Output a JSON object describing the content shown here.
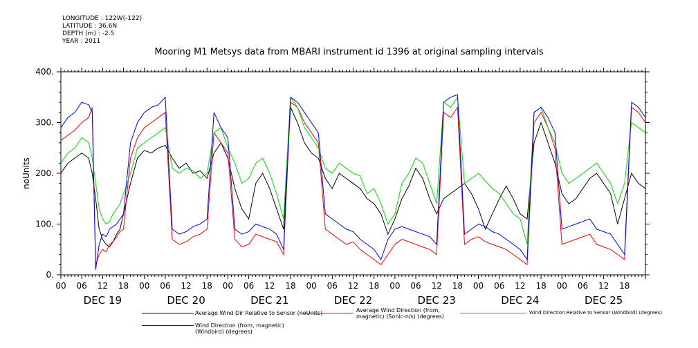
{
  "meta": {
    "longitude": "LONGITUDE : 122W(-122)",
    "latitude": "LATITUDE : 36.6N",
    "depth": "DEPTH (m) : -2.5",
    "year": "YEAR : 2011"
  },
  "chart_data": {
    "type": "line",
    "title": "Mooring M1 Metsys data from MBARI instrument id 1396 at original sampling intervals",
    "ylabel": "noUnits",
    "ylim": [
      0,
      400
    ],
    "yticks": [
      0,
      100,
      200,
      300,
      400
    ],
    "ytick_labels": [
      "0.",
      "100.",
      "200.",
      "300.",
      "400."
    ],
    "x_range_hours": [
      0,
      168
    ],
    "hour_tick_labels": [
      "00",
      "06",
      "12",
      "18",
      "00",
      "06",
      "12",
      "18",
      "00",
      "06",
      "12",
      "18",
      "00",
      "06",
      "12",
      "18",
      "00",
      "06",
      "12",
      "18",
      "00",
      "06",
      "12",
      "18",
      "00",
      "06",
      "12",
      "18"
    ],
    "day_labels": [
      "DEC 19",
      "DEC 20",
      "DEC 21",
      "DEC 22",
      "DEC 23",
      "DEC 24",
      "DEC 25"
    ],
    "grid": false,
    "legend_position": "bottom",
    "series": [
      {
        "name": "Average Wind Dir Relative to Sensor (noUnits)",
        "color": "#000000",
        "x": [
          0,
          2,
          4,
          6,
          8,
          9,
          10,
          11,
          12,
          13,
          14,
          15,
          16,
          17,
          18,
          20,
          22,
          24,
          26,
          28,
          30,
          32,
          34,
          36,
          38,
          40,
          42,
          44,
          46,
          48,
          50,
          52,
          54,
          56,
          58,
          60,
          62,
          64,
          66,
          68,
          70,
          72,
          74,
          76,
          78,
          80,
          82,
          84,
          86,
          88,
          90,
          92,
          94,
          96,
          98,
          100,
          102,
          104,
          106,
          108,
          110,
          112,
          114,
          116,
          118,
          120,
          122,
          124,
          126,
          128,
          130,
          132,
          134,
          136,
          138,
          140,
          142,
          144,
          146,
          148,
          150,
          152,
          154,
          156,
          158,
          160,
          162,
          164,
          166,
          168
        ],
        "y": [
          200,
          220,
          230,
          240,
          230,
          200,
          150,
          90,
          70,
          60,
          55,
          65,
          80,
          90,
          120,
          180,
          230,
          245,
          240,
          250,
          255,
          230,
          210,
          220,
          200,
          205,
          190,
          240,
          260,
          230,
          170,
          130,
          110,
          180,
          200,
          170,
          130,
          90,
          330,
          300,
          260,
          240,
          230,
          190,
          170,
          200,
          190,
          180,
          170,
          150,
          140,
          120,
          80,
          110,
          150,
          175,
          210,
          190,
          150,
          120,
          150,
          160,
          170,
          180,
          160,
          130,
          90,
          120,
          150,
          175,
          150,
          120,
          110,
          260,
          300,
          260,
          220,
          160,
          140,
          150,
          170,
          190,
          200,
          180,
          160,
          100,
          150,
          200,
          180,
          170
        ]
      },
      {
        "name": "Average Wind Direction (from, magnetic) (Sonic-n/s) (degrees)",
        "color": "#ff0000",
        "x": [
          0,
          2,
          4,
          6,
          8,
          9,
          10,
          11,
          12,
          13,
          14,
          15,
          16,
          17,
          18,
          20,
          22,
          24,
          26,
          28,
          30,
          32,
          34,
          36,
          38,
          40,
          42,
          44,
          46,
          48,
          50,
          52,
          54,
          56,
          58,
          60,
          62,
          64,
          66,
          68,
          70,
          72,
          74,
          76,
          78,
          80,
          82,
          84,
          86,
          88,
          90,
          92,
          94,
          96,
          98,
          100,
          102,
          104,
          106,
          108,
          110,
          112,
          114,
          116,
          118,
          120,
          122,
          124,
          126,
          128,
          130,
          132,
          134,
          136,
          138,
          140,
          142,
          144,
          146,
          148,
          150,
          152,
          154,
          156,
          158,
          160,
          162,
          164,
          166,
          168
        ],
        "y": [
          265,
          275,
          285,
          300,
          310,
          330,
          20,
          40,
          50,
          45,
          60,
          65,
          75,
          85,
          90,
          230,
          270,
          290,
          300,
          310,
          320,
          70,
          60,
          65,
          75,
          80,
          90,
          280,
          260,
          240,
          70,
          55,
          60,
          80,
          75,
          70,
          65,
          40,
          340,
          330,
          300,
          280,
          260,
          90,
          80,
          70,
          60,
          65,
          50,
          40,
          30,
          20,
          40,
          60,
          70,
          65,
          60,
          55,
          50,
          40,
          320,
          310,
          330,
          60,
          70,
          75,
          65,
          60,
          55,
          50,
          40,
          30,
          20,
          300,
          320,
          290,
          250,
          60,
          65,
          70,
          75,
          80,
          60,
          55,
          50,
          40,
          30,
          330,
          320,
          300
        ]
      },
      {
        "name": "Wind Direction Relative to Sensor (Windbird) (degrees)",
        "color": "#00dd00",
        "x": [
          0,
          2,
          4,
          6,
          8,
          9,
          10,
          11,
          12,
          13,
          14,
          15,
          16,
          17,
          18,
          20,
          22,
          24,
          26,
          28,
          30,
          32,
          34,
          36,
          38,
          40,
          42,
          44,
          46,
          48,
          50,
          52,
          54,
          56,
          58,
          60,
          62,
          64,
          66,
          68,
          70,
          72,
          74,
          76,
          78,
          80,
          82,
          84,
          86,
          88,
          90,
          92,
          94,
          96,
          98,
          100,
          102,
          104,
          106,
          108,
          110,
          112,
          114,
          116,
          118,
          120,
          122,
          124,
          126,
          128,
          130,
          132,
          134,
          136,
          138,
          140,
          142,
          144,
          146,
          148,
          150,
          152,
          154,
          156,
          158,
          160,
          162,
          164,
          166,
          168
        ],
        "y": [
          220,
          240,
          250,
          270,
          260,
          230,
          180,
          130,
          110,
          100,
          105,
          120,
          130,
          140,
          160,
          200,
          250,
          260,
          270,
          280,
          290,
          210,
          200,
          210,
          205,
          190,
          200,
          280,
          290,
          250,
          220,
          180,
          190,
          220,
          230,
          200,
          160,
          110,
          350,
          330,
          290,
          270,
          250,
          210,
          200,
          220,
          210,
          200,
          195,
          160,
          170,
          140,
          100,
          120,
          180,
          200,
          230,
          220,
          180,
          140,
          340,
          330,
          350,
          180,
          190,
          200,
          185,
          170,
          160,
          140,
          120,
          110,
          60,
          320,
          330,
          290,
          260,
          200,
          180,
          190,
          200,
          210,
          220,
          200,
          180,
          140,
          180,
          300,
          290,
          280
        ]
      },
      {
        "name": "Wind Direction (from, magnetic) (Windbird) (degrees)",
        "color": "#0000ff",
        "x": [
          0,
          2,
          4,
          6,
          8,
          9,
          10,
          11,
          12,
          13,
          14,
          15,
          16,
          17,
          18,
          20,
          22,
          24,
          26,
          28,
          30,
          32,
          34,
          36,
          38,
          40,
          42,
          44,
          46,
          48,
          50,
          52,
          54,
          56,
          58,
          60,
          62,
          64,
          66,
          68,
          70,
          72,
          74,
          76,
          78,
          80,
          82,
          84,
          86,
          88,
          90,
          92,
          94,
          96,
          98,
          100,
          102,
          104,
          106,
          108,
          110,
          112,
          114,
          116,
          118,
          120,
          122,
          124,
          126,
          128,
          130,
          132,
          134,
          136,
          138,
          140,
          142,
          144,
          146,
          148,
          150,
          152,
          154,
          156,
          158,
          160,
          162,
          164,
          166,
          168
        ],
        "y": [
          290,
          310,
          320,
          340,
          335,
          320,
          10,
          60,
          80,
          75,
          90,
          95,
          100,
          110,
          120,
          260,
          300,
          320,
          330,
          335,
          350,
          90,
          80,
          85,
          95,
          100,
          110,
          320,
          290,
          270,
          90,
          80,
          85,
          100,
          95,
          90,
          80,
          50,
          350,
          340,
          320,
          300,
          280,
          120,
          110,
          100,
          90,
          85,
          70,
          60,
          50,
          30,
          70,
          90,
          95,
          90,
          85,
          80,
          75,
          60,
          340,
          350,
          355,
          80,
          90,
          100,
          95,
          85,
          80,
          70,
          60,
          50,
          30,
          320,
          330,
          310,
          280,
          90,
          95,
          100,
          105,
          110,
          90,
          85,
          80,
          60,
          40,
          340,
          330,
          310
        ]
      }
    ]
  }
}
